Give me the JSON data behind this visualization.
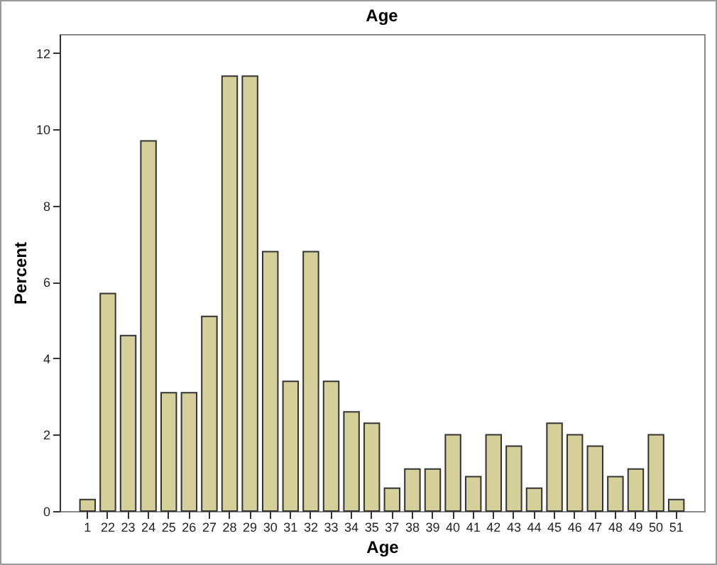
{
  "chart_data": {
    "type": "bar",
    "title": "Age",
    "xlabel": "Age",
    "ylabel": "Percent",
    "categories": [
      "1",
      "22",
      "23",
      "24",
      "25",
      "26",
      "27",
      "28",
      "29",
      "30",
      "31",
      "32",
      "33",
      "34",
      "35",
      "37",
      "38",
      "39",
      "40",
      "41",
      "42",
      "43",
      "44",
      "45",
      "46",
      "47",
      "48",
      "49",
      "50",
      "51"
    ],
    "values": [
      0.3,
      5.7,
      4.6,
      9.7,
      3.1,
      3.1,
      5.1,
      11.4,
      11.4,
      6.8,
      3.4,
      6.8,
      3.4,
      2.6,
      2.3,
      0.6,
      1.1,
      1.1,
      2.0,
      0.9,
      2.0,
      1.7,
      0.6,
      2.3,
      2.0,
      1.7,
      0.9,
      1.1,
      2.0,
      0.3
    ],
    "color": "#d5cf99",
    "ylim": [
      0,
      12.5
    ],
    "yticks": [
      0,
      2,
      4,
      6,
      8,
      10,
      12
    ],
    "grid": false
  }
}
